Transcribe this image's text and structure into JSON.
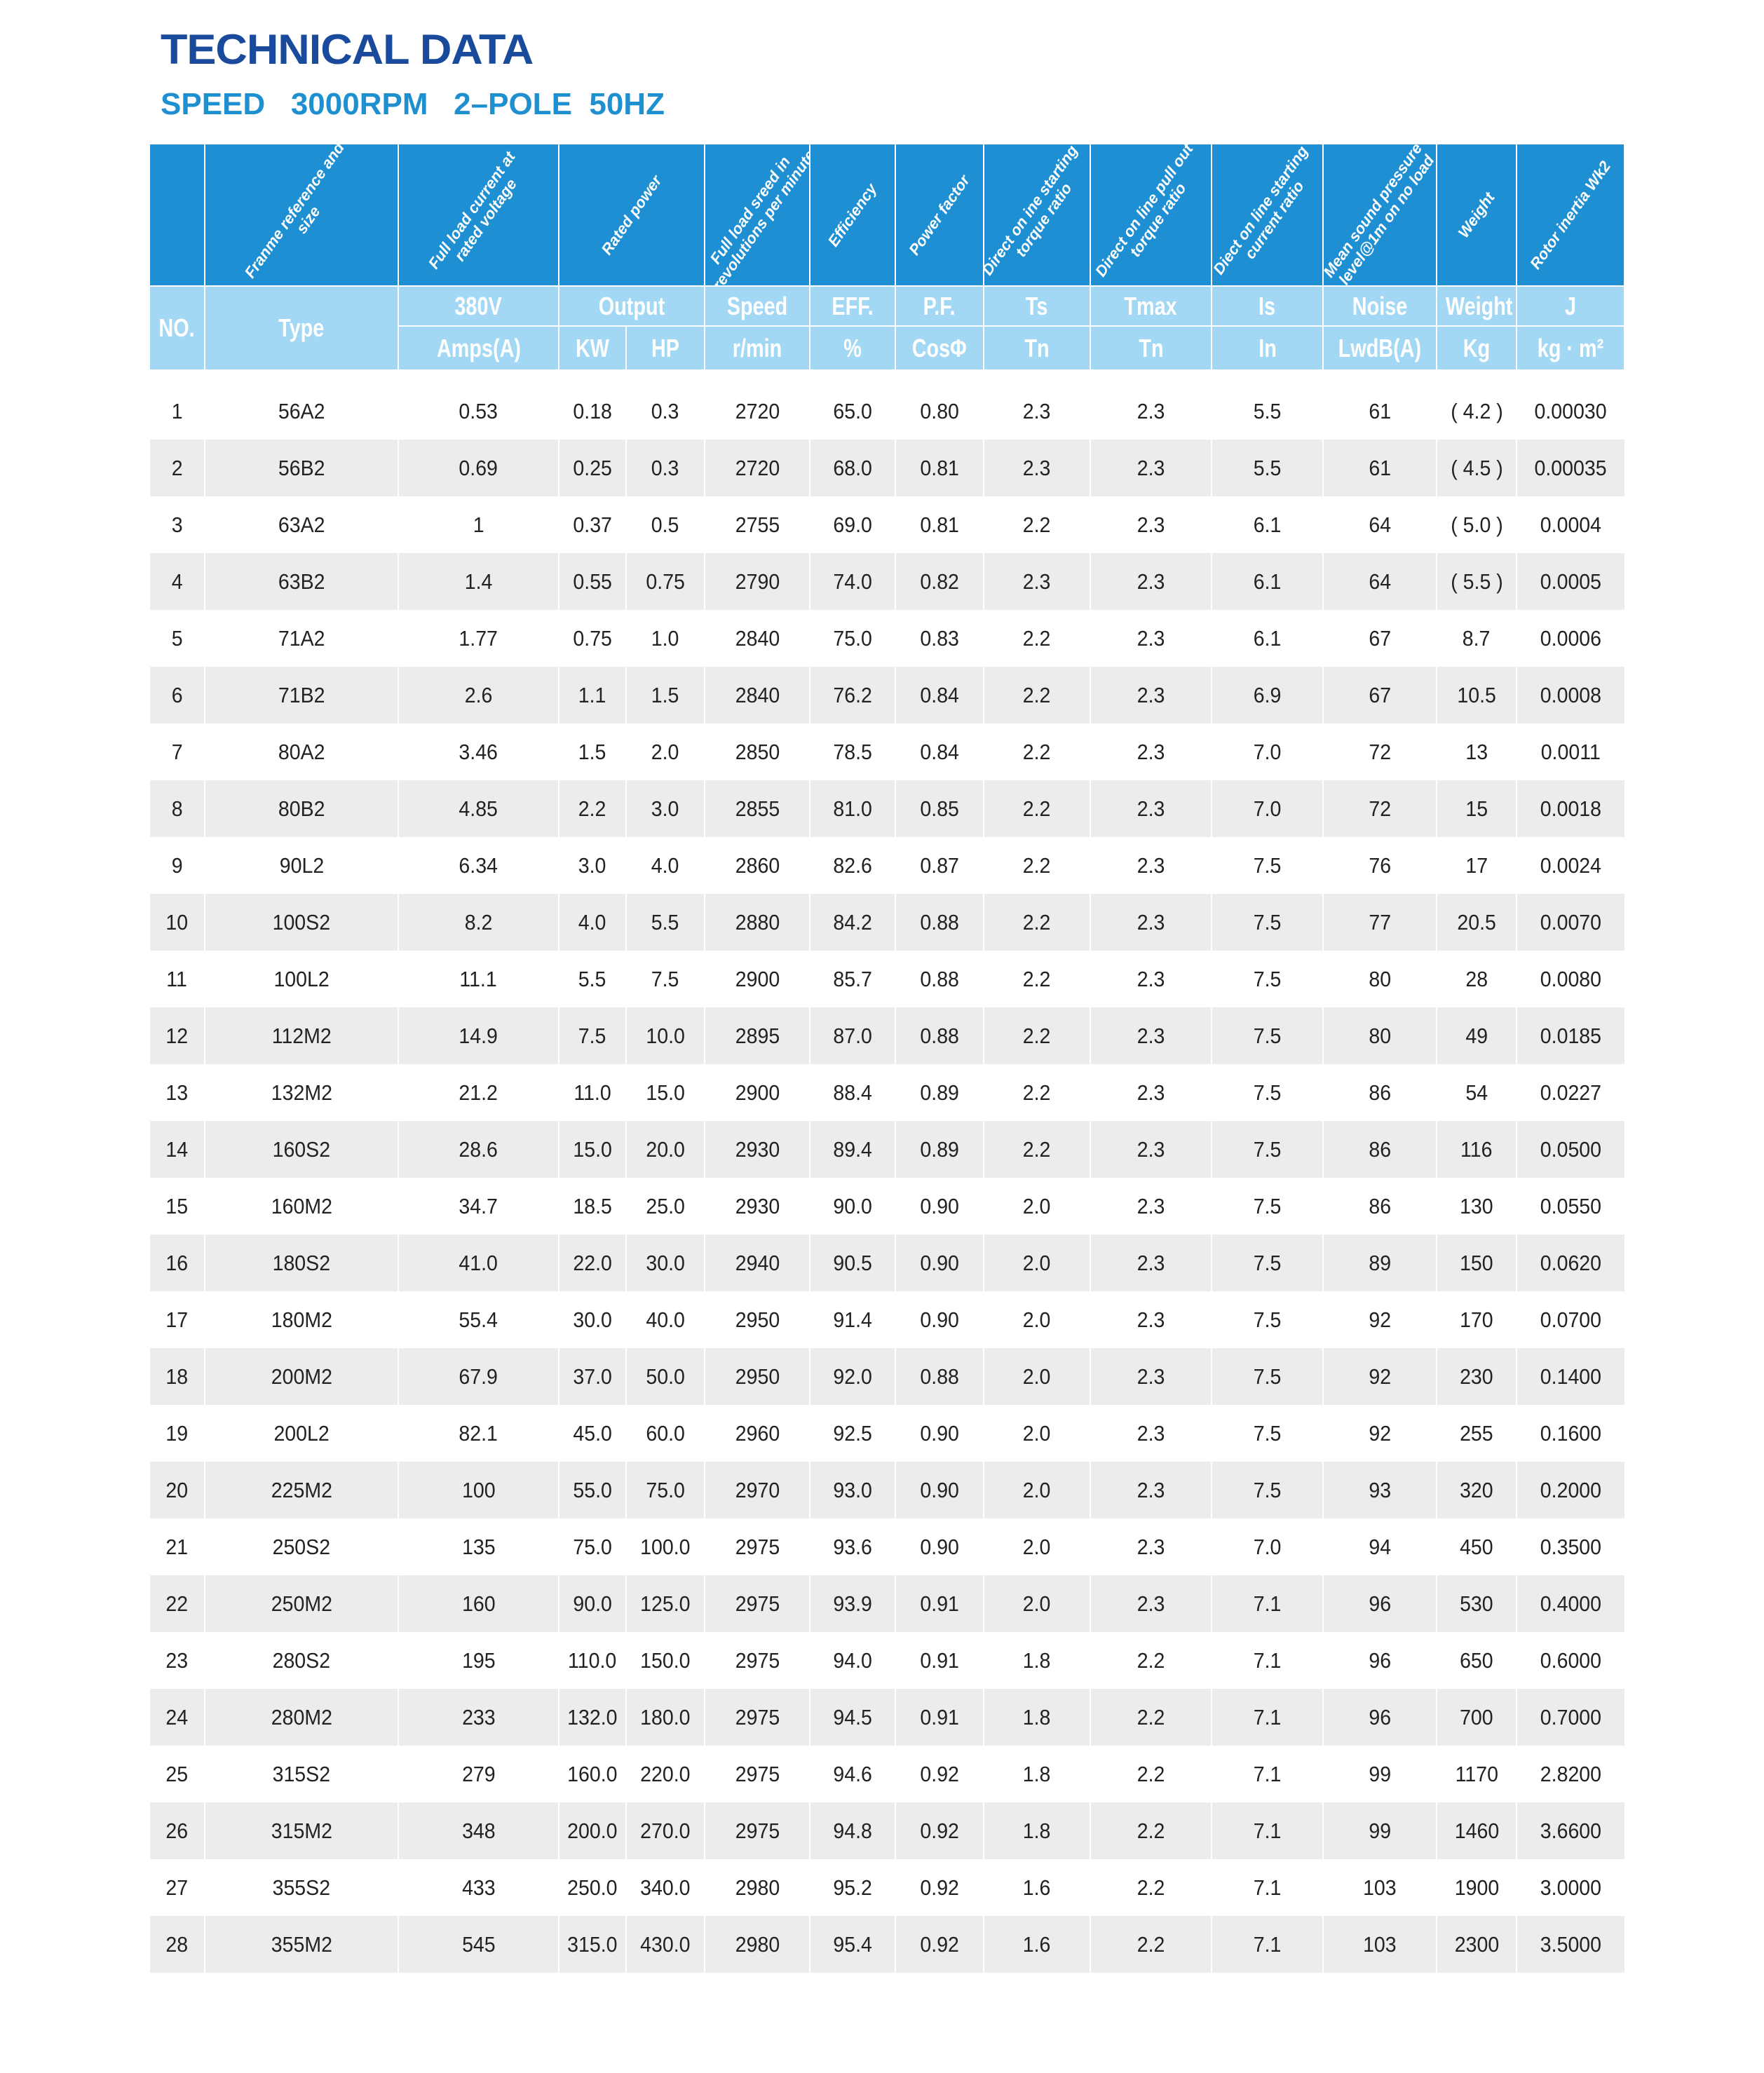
{
  "title": "TECHNICAL DATA",
  "subtitle": "SPEED   3000RPM   2–POLE  50HZ",
  "colors": {
    "title": "#1a4a9c",
    "subtitle": "#1e90d0",
    "header_dark": "#1e8fd2",
    "header_light": "#a3d8f4",
    "row_alt": "#ececec"
  },
  "header_descriptions": [
    "",
    "Franme reference and size",
    "Full load current at rated voltage",
    "Rated power",
    "Full load sreed in revolutions per minute",
    "Efficiency",
    "Power factor",
    "Direct on ine starting torque ratio",
    "Direct on line pull out torque ratio",
    "Diect on line starting current ratio",
    "Mean sound pressure level@1m on no load",
    "Weight",
    "Rotor inertia Wk2"
  ],
  "header_labels": {
    "no": "NO.",
    "type": "Type",
    "current": "380V",
    "output": "Output",
    "speed": "Speed",
    "eff": "EFF.",
    "pf": "P.F.",
    "ts": "Ts",
    "tmax": "Tmax",
    "is": "Is",
    "noise": "Noise",
    "weight": "Weight",
    "j": "J"
  },
  "header_units": {
    "current": "Amps(A)",
    "kw": "KW",
    "hp": "HP",
    "speed": "r/min",
    "eff": "%",
    "pf": "CosΦ",
    "ts": "Tn",
    "tmax": "Tn",
    "is": "In",
    "noise": "LwdB(A)",
    "weight": "Kg",
    "j": "kg · m²"
  },
  "rows": [
    [
      "1",
      "56A2",
      "0.53",
      "0.18",
      "0.3",
      "2720",
      "65.0",
      "0.80",
      "2.3",
      "2.3",
      "5.5",
      "61",
      "( 4.2 )",
      "0.00030"
    ],
    [
      "2",
      "56B2",
      "0.69",
      "0.25",
      "0.3",
      "2720",
      "68.0",
      "0.81",
      "2.3",
      "2.3",
      "5.5",
      "61",
      "( 4.5 )",
      "0.00035"
    ],
    [
      "3",
      "63A2",
      "1",
      "0.37",
      "0.5",
      "2755",
      "69.0",
      "0.81",
      "2.2",
      "2.3",
      "6.1",
      "64",
      "( 5.0 )",
      "0.0004"
    ],
    [
      "4",
      "63B2",
      "1.4",
      "0.55",
      "0.75",
      "2790",
      "74.0",
      "0.82",
      "2.3",
      "2.3",
      "6.1",
      "64",
      "( 5.5 )",
      "0.0005"
    ],
    [
      "5",
      "71A2",
      "1.77",
      "0.75",
      "1.0",
      "2840",
      "75.0",
      "0.83",
      "2.2",
      "2.3",
      "6.1",
      "67",
      "8.7",
      "0.0006"
    ],
    [
      "6",
      "71B2",
      "2.6",
      "1.1",
      "1.5",
      "2840",
      "76.2",
      "0.84",
      "2.2",
      "2.3",
      "6.9",
      "67",
      "10.5",
      "0.0008"
    ],
    [
      "7",
      "80A2",
      "3.46",
      "1.5",
      "2.0",
      "2850",
      "78.5",
      "0.84",
      "2.2",
      "2.3",
      "7.0",
      "72",
      "13",
      "0.0011"
    ],
    [
      "8",
      "80B2",
      "4.85",
      "2.2",
      "3.0",
      "2855",
      "81.0",
      "0.85",
      "2.2",
      "2.3",
      "7.0",
      "72",
      "15",
      "0.0018"
    ],
    [
      "9",
      "90L2",
      "6.34",
      "3.0",
      "4.0",
      "2860",
      "82.6",
      "0.87",
      "2.2",
      "2.3",
      "7.5",
      "76",
      "17",
      "0.0024"
    ],
    [
      "10",
      "100S2",
      "8.2",
      "4.0",
      "5.5",
      "2880",
      "84.2",
      "0.88",
      "2.2",
      "2.3",
      "7.5",
      "77",
      "20.5",
      "0.0070"
    ],
    [
      "11",
      "100L2",
      "11.1",
      "5.5",
      "7.5",
      "2900",
      "85.7",
      "0.88",
      "2.2",
      "2.3",
      "7.5",
      "80",
      "28",
      "0.0080"
    ],
    [
      "12",
      "112M2",
      "14.9",
      "7.5",
      "10.0",
      "2895",
      "87.0",
      "0.88",
      "2.2",
      "2.3",
      "7.5",
      "80",
      "49",
      "0.0185"
    ],
    [
      "13",
      "132M2",
      "21.2",
      "11.0",
      "15.0",
      "2900",
      "88.4",
      "0.89",
      "2.2",
      "2.3",
      "7.5",
      "86",
      "54",
      "0.0227"
    ],
    [
      "14",
      "160S2",
      "28.6",
      "15.0",
      "20.0",
      "2930",
      "89.4",
      "0.89",
      "2.2",
      "2.3",
      "7.5",
      "86",
      "116",
      "0.0500"
    ],
    [
      "15",
      "160M2",
      "34.7",
      "18.5",
      "25.0",
      "2930",
      "90.0",
      "0.90",
      "2.0",
      "2.3",
      "7.5",
      "86",
      "130",
      "0.0550"
    ],
    [
      "16",
      "180S2",
      "41.0",
      "22.0",
      "30.0",
      "2940",
      "90.5",
      "0.90",
      "2.0",
      "2.3",
      "7.5",
      "89",
      "150",
      "0.0620"
    ],
    [
      "17",
      "180M2",
      "55.4",
      "30.0",
      "40.0",
      "2950",
      "91.4",
      "0.90",
      "2.0",
      "2.3",
      "7.5",
      "92",
      "170",
      "0.0700"
    ],
    [
      "18",
      "200M2",
      "67.9",
      "37.0",
      "50.0",
      "2950",
      "92.0",
      "0.88",
      "2.0",
      "2.3",
      "7.5",
      "92",
      "230",
      "0.1400"
    ],
    [
      "19",
      "200L2",
      "82.1",
      "45.0",
      "60.0",
      "2960",
      "92.5",
      "0.90",
      "2.0",
      "2.3",
      "7.5",
      "92",
      "255",
      "0.1600"
    ],
    [
      "20",
      "225M2",
      "100",
      "55.0",
      "75.0",
      "2970",
      "93.0",
      "0.90",
      "2.0",
      "2.3",
      "7.5",
      "93",
      "320",
      "0.2000"
    ],
    [
      "21",
      "250S2",
      "135",
      "75.0",
      "100.0",
      "2975",
      "93.6",
      "0.90",
      "2.0",
      "2.3",
      "7.0",
      "94",
      "450",
      "0.3500"
    ],
    [
      "22",
      "250M2",
      "160",
      "90.0",
      "125.0",
      "2975",
      "93.9",
      "0.91",
      "2.0",
      "2.3",
      "7.1",
      "96",
      "530",
      "0.4000"
    ],
    [
      "23",
      "280S2",
      "195",
      "110.0",
      "150.0",
      "2975",
      "94.0",
      "0.91",
      "1.8",
      "2.2",
      "7.1",
      "96",
      "650",
      "0.6000"
    ],
    [
      "24",
      "280M2",
      "233",
      "132.0",
      "180.0",
      "2975",
      "94.5",
      "0.91",
      "1.8",
      "2.2",
      "7.1",
      "96",
      "700",
      "0.7000"
    ],
    [
      "25",
      "315S2",
      "279",
      "160.0",
      "220.0",
      "2975",
      "94.6",
      "0.92",
      "1.8",
      "2.2",
      "7.1",
      "99",
      "1170",
      "2.8200"
    ],
    [
      "26",
      "315M2",
      "348",
      "200.0",
      "270.0",
      "2975",
      "94.8",
      "0.92",
      "1.8",
      "2.2",
      "7.1",
      "99",
      "1460",
      "3.6600"
    ],
    [
      "27",
      "355S2",
      "433",
      "250.0",
      "340.0",
      "2980",
      "95.2",
      "0.92",
      "1.6",
      "2.2",
      "7.1",
      "103",
      "1900",
      "3.0000"
    ],
    [
      "28",
      "355M2",
      "545",
      "315.0",
      "430.0",
      "2980",
      "95.4",
      "0.92",
      "1.6",
      "2.2",
      "7.1",
      "103",
      "2300",
      "3.5000"
    ]
  ]
}
